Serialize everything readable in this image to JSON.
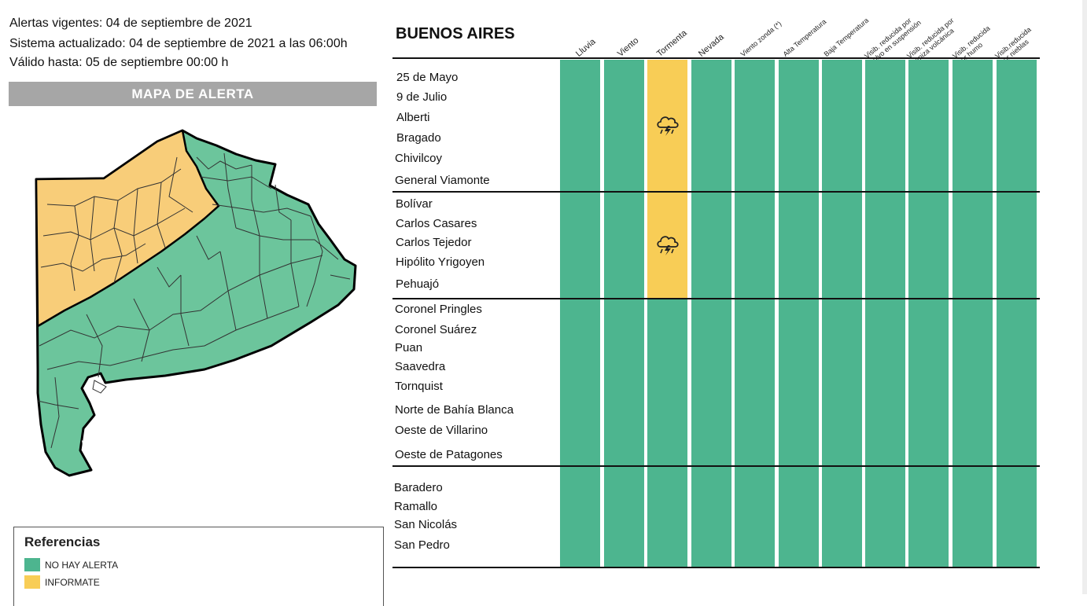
{
  "header": {
    "alerts_line": "Alertas vigentes: 04 de septiembre de 2021",
    "updated_line": "Sistema actualizado: 04 de septiembre de 2021 a las 06:00h",
    "valid_line": "Válido hasta: 05 de septiembre 00:00 h"
  },
  "map": {
    "title": "MAPA DE ALERTA"
  },
  "references": {
    "title": "Referencias",
    "items": [
      {
        "label": "NO HAY ALERTA",
        "color": "#4db58f"
      },
      {
        "label": "INFORMATE",
        "color": "#f8cd56"
      }
    ]
  },
  "table": {
    "region": "BUENOS AIRES",
    "hazards": [
      {
        "label": "Lluvia"
      },
      {
        "label": "Viento"
      },
      {
        "label": "Tormenta"
      },
      {
        "label": "Nevada"
      },
      {
        "label": "Viento zonda (*)"
      },
      {
        "label": "Alta Temperatura"
      },
      {
        "label": "Baja Temperatura"
      },
      {
        "label": "Visib. reducida por polvo en suspensión"
      },
      {
        "label": "Visib. reducida por ceniza volcánica"
      },
      {
        "label": "Visib. reducida por humo"
      },
      {
        "label": "Visib.reducida por nieblas"
      }
    ],
    "groups": [
      {
        "locations": [
          "25 de Mayo",
          "9 de Julio",
          "Alberti",
          "Bragado",
          "Chivilcoy",
          "General Viamonte"
        ],
        "levels": [
          "green",
          "green",
          "yellow",
          "green",
          "green",
          "green",
          "green",
          "green",
          "green",
          "green",
          "green"
        ],
        "icon": "storm-icon"
      },
      {
        "locations": [
          "Bolívar",
          "Carlos Casares",
          "Carlos Tejedor",
          "Hipólito Yrigoyen",
          "Pehuajó"
        ],
        "levels": [
          "green",
          "green",
          "yellow",
          "green",
          "green",
          "green",
          "green",
          "green",
          "green",
          "green",
          "green"
        ],
        "icon": "storm-icon"
      },
      {
        "locations": [
          "Coronel Pringles",
          "Coronel Suárez",
          "Puan",
          "Saavedra",
          "Tornquist",
          "Norte de Bahía Blanca",
          "Oeste de Villarino",
          "Oeste de Patagones"
        ],
        "levels": [
          "green",
          "green",
          "green",
          "green",
          "green",
          "green",
          "green",
          "green",
          "green",
          "green",
          "green"
        ]
      },
      {
        "locations": [
          "Baradero",
          "Ramallo",
          "San Nicolás",
          "San Pedro"
        ],
        "levels": [
          "green",
          "green",
          "green",
          "green",
          "green",
          "green",
          "green",
          "green",
          "green",
          "green",
          "green"
        ]
      }
    ]
  },
  "colors": {
    "green": "#4db58f",
    "yellow": "#f8cd56",
    "gray": "#a6a6a6"
  }
}
